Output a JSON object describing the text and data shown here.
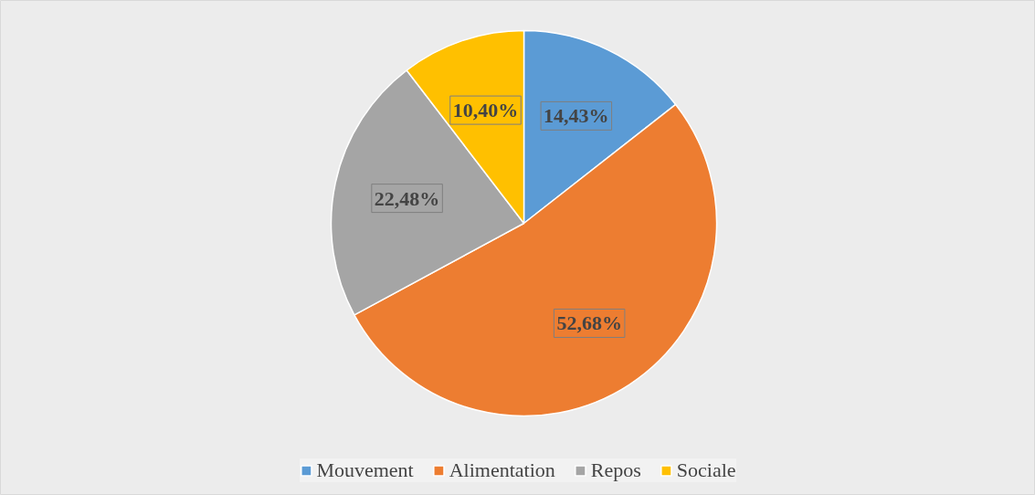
{
  "chart_data": {
    "type": "pie",
    "categories": [
      "Mouvement",
      "Alimentation",
      "Repos",
      "Sociale"
    ],
    "values": [
      14.43,
      52.68,
      22.48,
      10.4
    ],
    "colors": [
      "#5b9bd5",
      "#ed7d31",
      "#a5a5a5",
      "#ffc000"
    ],
    "value_labels": [
      "14,43%",
      "52,68%",
      "22,48%",
      "10,40%"
    ],
    "legend": "bottom"
  }
}
